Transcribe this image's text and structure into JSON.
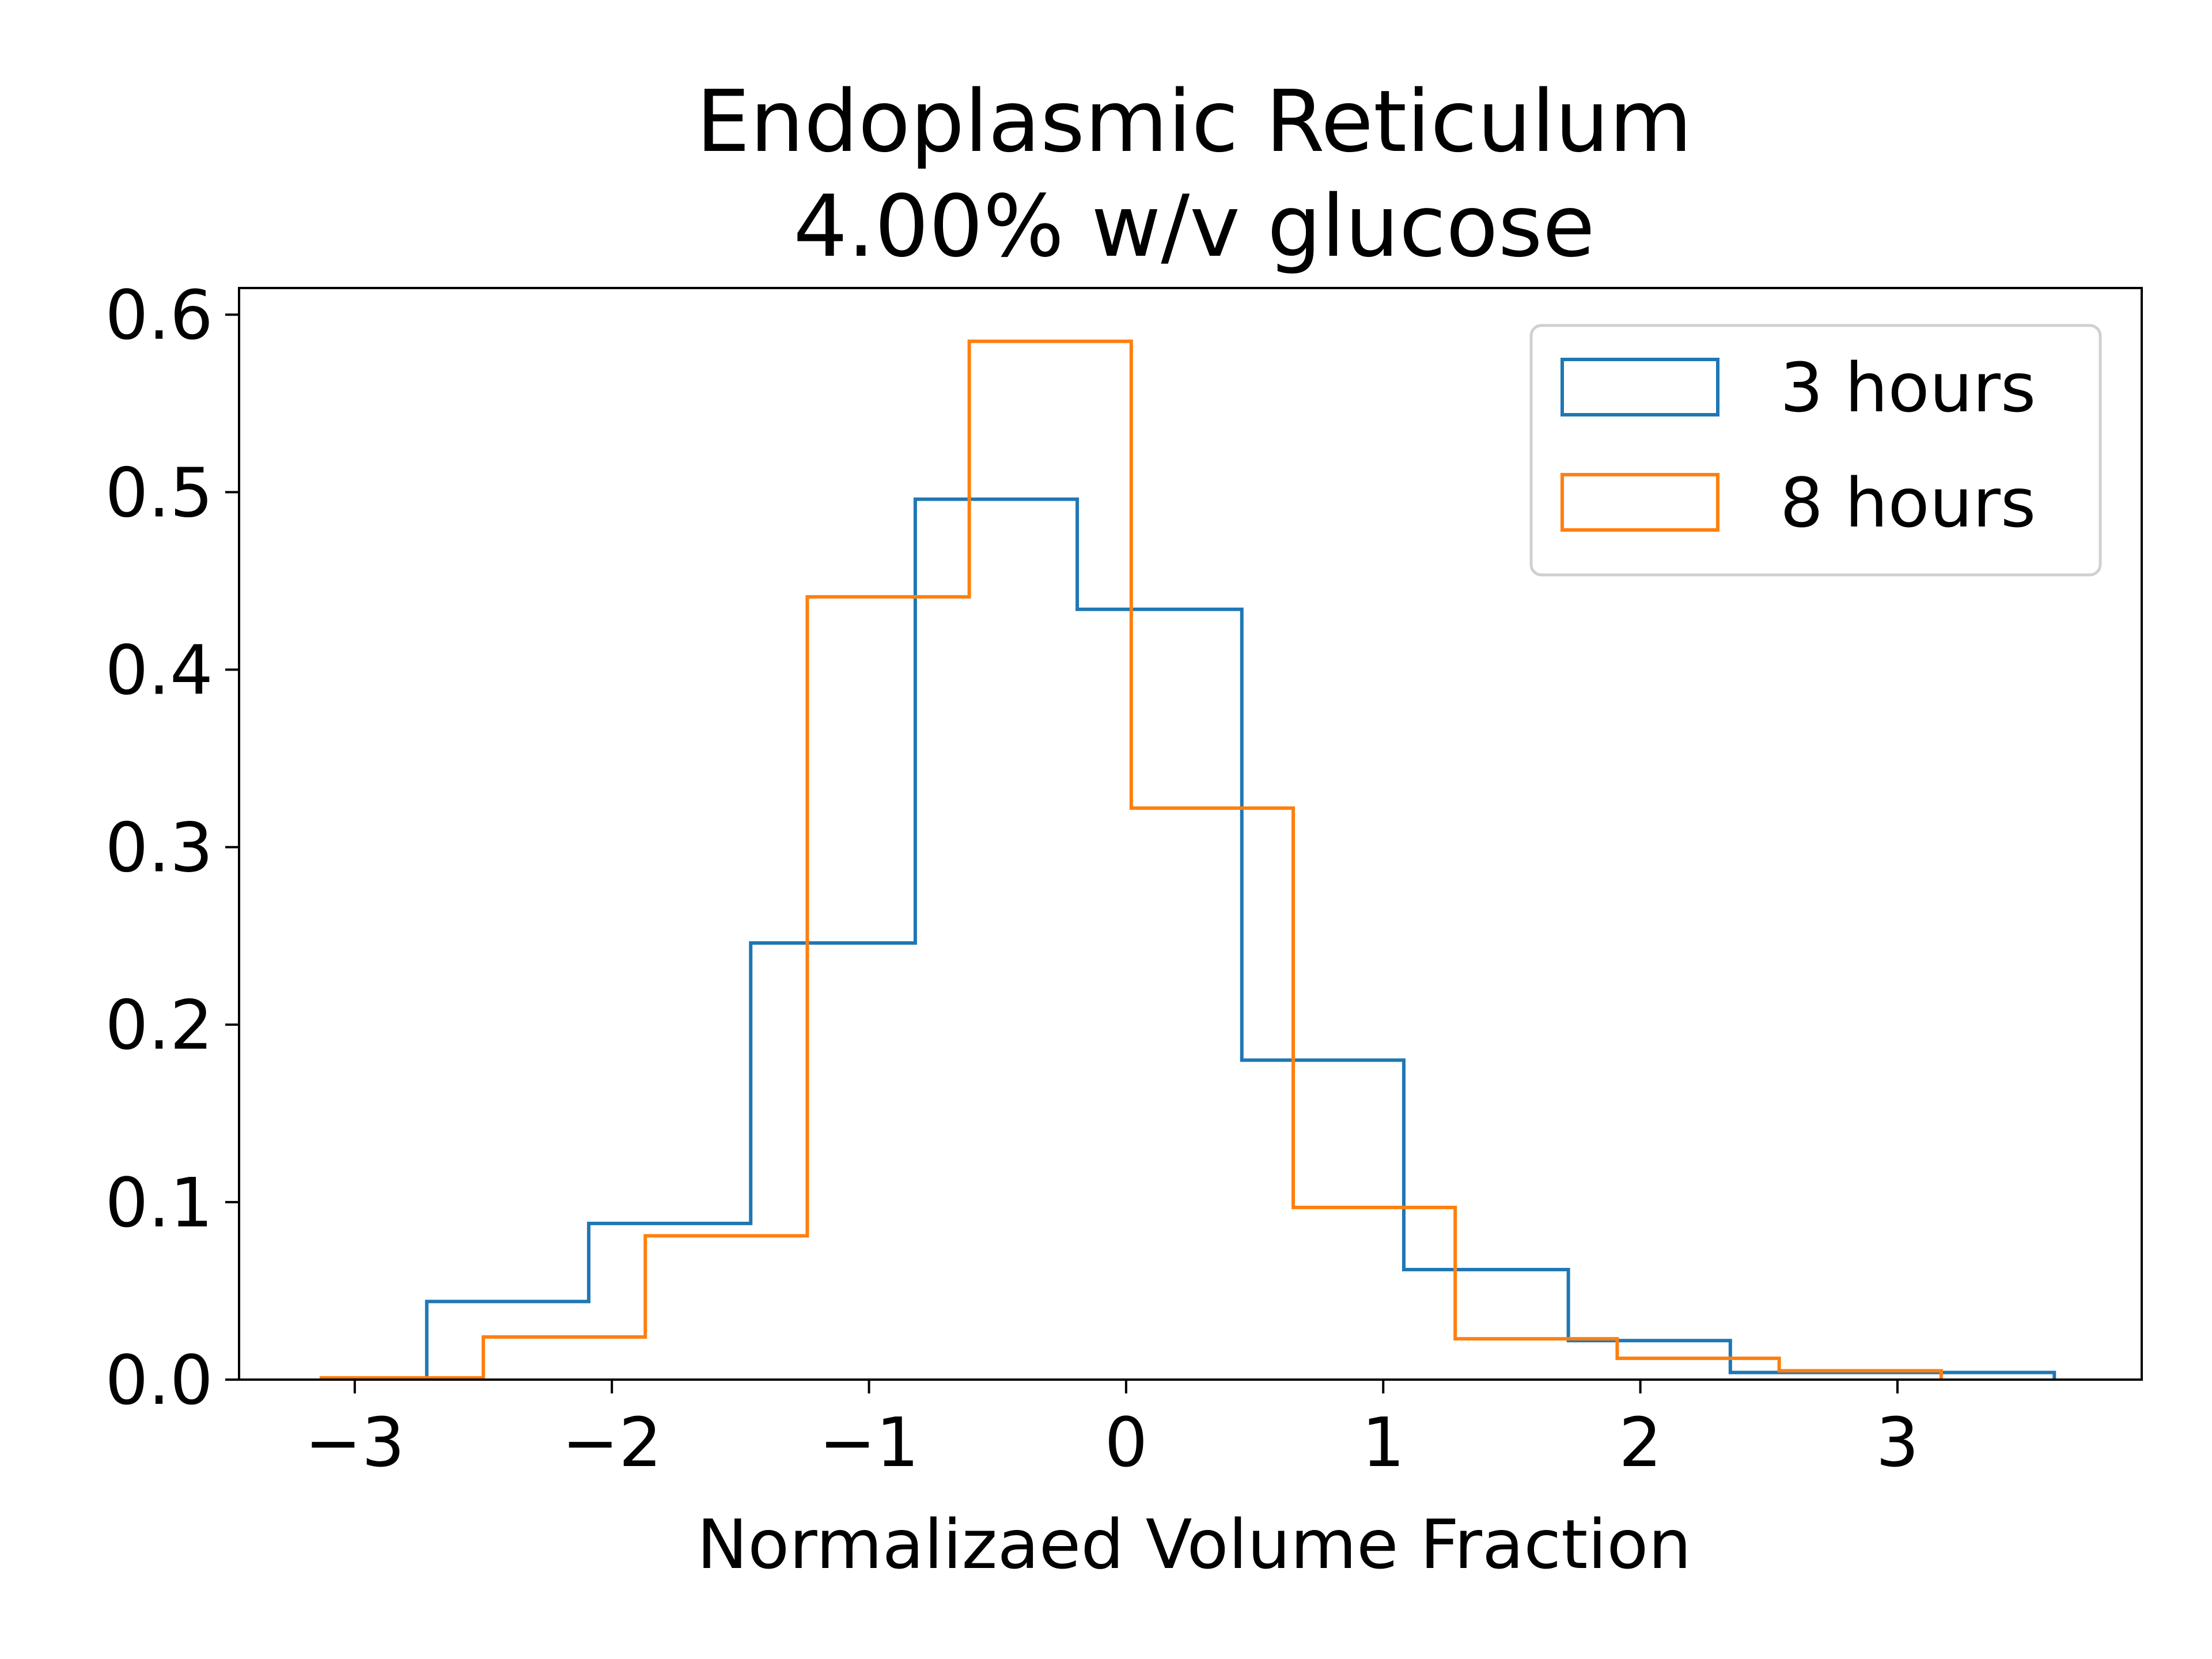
{
  "chart_data": {
    "type": "histogram",
    "title": "Endoplasmic Reticulum",
    "subtitle": "4.00% w/v glucose",
    "xlabel": "Normalizaed Volume Fraction",
    "ylabel": "",
    "xlim": [
      -3.45,
      3.95
    ],
    "ylim": [
      0,
      0.615
    ],
    "x_ticks": [
      -3,
      -2,
      -1,
      0,
      1,
      2,
      3
    ],
    "x_tick_labels": [
      "−3",
      "−2",
      "−1",
      "0",
      "1",
      "2",
      "3"
    ],
    "y_ticks": [
      0.0,
      0.1,
      0.2,
      0.3,
      0.4,
      0.5,
      0.6
    ],
    "y_tick_labels": [
      "0.0",
      "0.1",
      "0.2",
      "0.3",
      "0.4",
      "0.5",
      "0.6"
    ],
    "grid": false,
    "legend": "top-right",
    "series": [
      {
        "name": "3 hours",
        "color": "#1f77b4",
        "bin_edges": [
          -2.72,
          -2.09,
          -1.46,
          -0.82,
          -0.19,
          0.45,
          1.08,
          1.72,
          2.35,
          2.98,
          3.61
        ],
        "values": [
          0.044,
          0.088,
          0.246,
          0.496,
          0.434,
          0.18,
          0.062,
          0.022,
          0.004,
          0.004
        ]
      },
      {
        "name": "8 hours",
        "color": "#ff7f0e",
        "bin_edges": [
          -3.13,
          -2.5,
          -1.87,
          -1.24,
          -0.61,
          0.02,
          0.65,
          1.28,
          1.91,
          2.54,
          3.17
        ],
        "values": [
          0.001,
          0.024,
          0.081,
          0.441,
          0.585,
          0.322,
          0.097,
          0.023,
          0.012,
          0.005
        ]
      }
    ]
  }
}
